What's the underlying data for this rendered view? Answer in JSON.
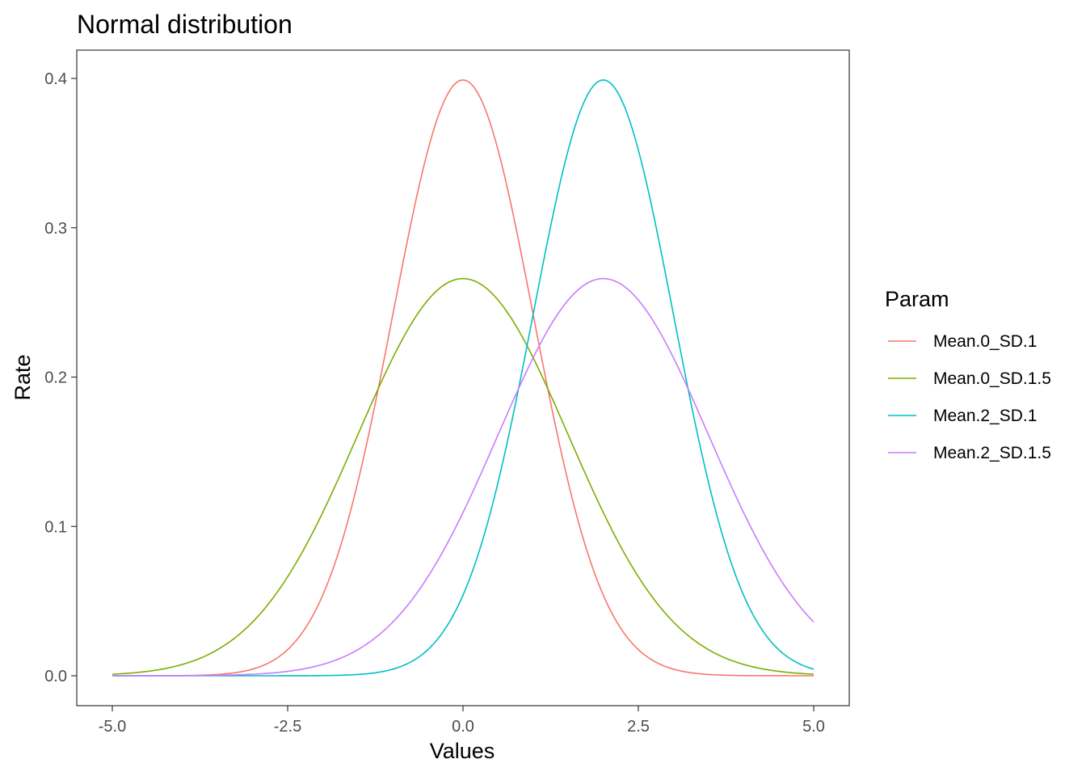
{
  "chart_data": {
    "type": "line",
    "title": "Normal distribution",
    "xlabel": "Values",
    "ylabel": "Rate",
    "xlim": [
      -5.0,
      5.0
    ],
    "ylim": [
      0.0,
      0.4
    ],
    "x_ticks": [
      -5.0,
      -2.5,
      0.0,
      2.5,
      5.0
    ],
    "x_tick_labels": [
      "-5.0",
      "-2.5",
      "0.0",
      "2.5",
      "5.0"
    ],
    "y_ticks": [
      0.0,
      0.1,
      0.2,
      0.3,
      0.4
    ],
    "y_tick_labels": [
      "0.0",
      "0.1",
      "0.2",
      "0.3",
      "0.4"
    ],
    "grid": false,
    "legend": {
      "title": "Param",
      "position": "right"
    },
    "x": [
      -5,
      -4.5,
      -4,
      -3.5,
      -3,
      -2.5,
      -2,
      -1.5,
      -1,
      -0.5,
      0,
      0.5,
      1,
      1.5,
      2,
      2.5,
      3,
      3.5,
      4,
      4.5,
      5
    ],
    "series": [
      {
        "name": "Mean.0_SD.1",
        "color": "#F8766D",
        "mean": 0,
        "sd": 1,
        "values": [
          0.0,
          0.0,
          0.0001,
          0.0009,
          0.0044,
          0.0175,
          0.054,
          0.1295,
          0.242,
          0.3521,
          0.3989,
          0.3521,
          0.242,
          0.1295,
          0.054,
          0.0175,
          0.0044,
          0.0009,
          0.0001,
          0.0,
          0.0
        ]
      },
      {
        "name": "Mean.0_SD.1.5",
        "color": "#7CAE00",
        "mean": 0,
        "sd": 1.5,
        "values": [
          0.001,
          0.003,
          0.0076,
          0.0176,
          0.036,
          0.0665,
          0.1093,
          0.1613,
          0.213,
          0.2516,
          0.266,
          0.2516,
          0.213,
          0.1613,
          0.1093,
          0.0665,
          0.036,
          0.0176,
          0.0076,
          0.003,
          0.001
        ]
      },
      {
        "name": "Mean.2_SD.1",
        "color": "#00BFC4",
        "mean": 2,
        "sd": 1,
        "values": [
          0.0,
          0.0,
          0.0,
          0.0,
          0.0,
          0.0,
          0.0,
          0.0,
          0.0044,
          0.0175,
          0.054,
          0.1295,
          0.242,
          0.3521,
          0.3989,
          0.3521,
          0.242,
          0.1295,
          0.054,
          0.0175,
          0.0044
        ]
      },
      {
        "name": "Mean.2_SD.1.5",
        "color": "#C77CFF",
        "mean": 2,
        "sd": 1.5,
        "values": [
          0.0,
          0.0,
          0.0001,
          0.0003,
          0.001,
          0.003,
          0.0076,
          0.0176,
          0.036,
          0.0665,
          0.1093,
          0.1613,
          0.213,
          0.2516,
          0.266,
          0.2516,
          0.213,
          0.1613,
          0.1093,
          0.0665,
          0.036
        ]
      }
    ]
  }
}
